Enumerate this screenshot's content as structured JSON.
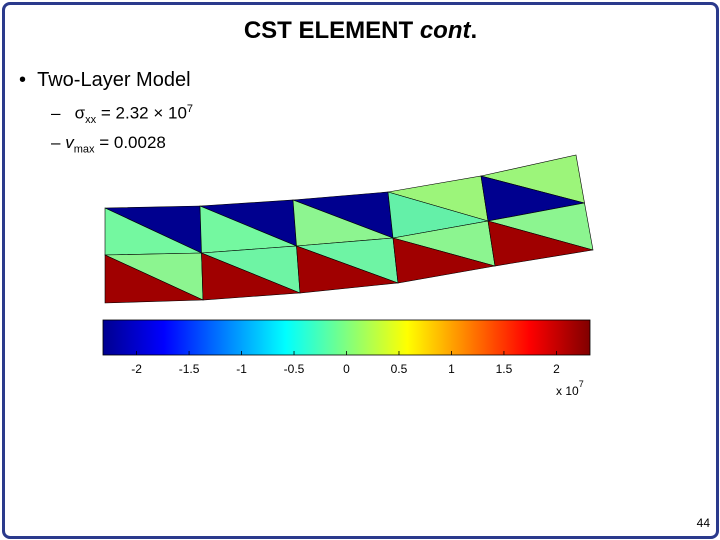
{
  "header": {
    "title": {
      "main": "CST ELEMENT",
      "italic": "cont",
      "end": "."
    }
  },
  "bullets": [
    {
      "text": "Two-Layer Model",
      "items": [
        {
          "dash": "–",
          "symbol": "σ",
          "subscript": "xx",
          "text": "= 2.32 × 10",
          "superscript": "7"
        },
        {
          "dash": "–",
          "symbol": "v",
          "subscript": "max",
          "text": "= 0.0028"
        }
      ]
    }
  ],
  "figure": {
    "colorbar": {
      "clim": [
        -2.32,
        2.32
      ],
      "ticks": [
        -2,
        -1.5,
        -1,
        -0.5,
        0,
        0.5,
        1,
        1.5,
        2
      ],
      "multiplier": "x 10",
      "multiplier_exponent": "7"
    }
  },
  "footer": {
    "page": "44"
  }
}
